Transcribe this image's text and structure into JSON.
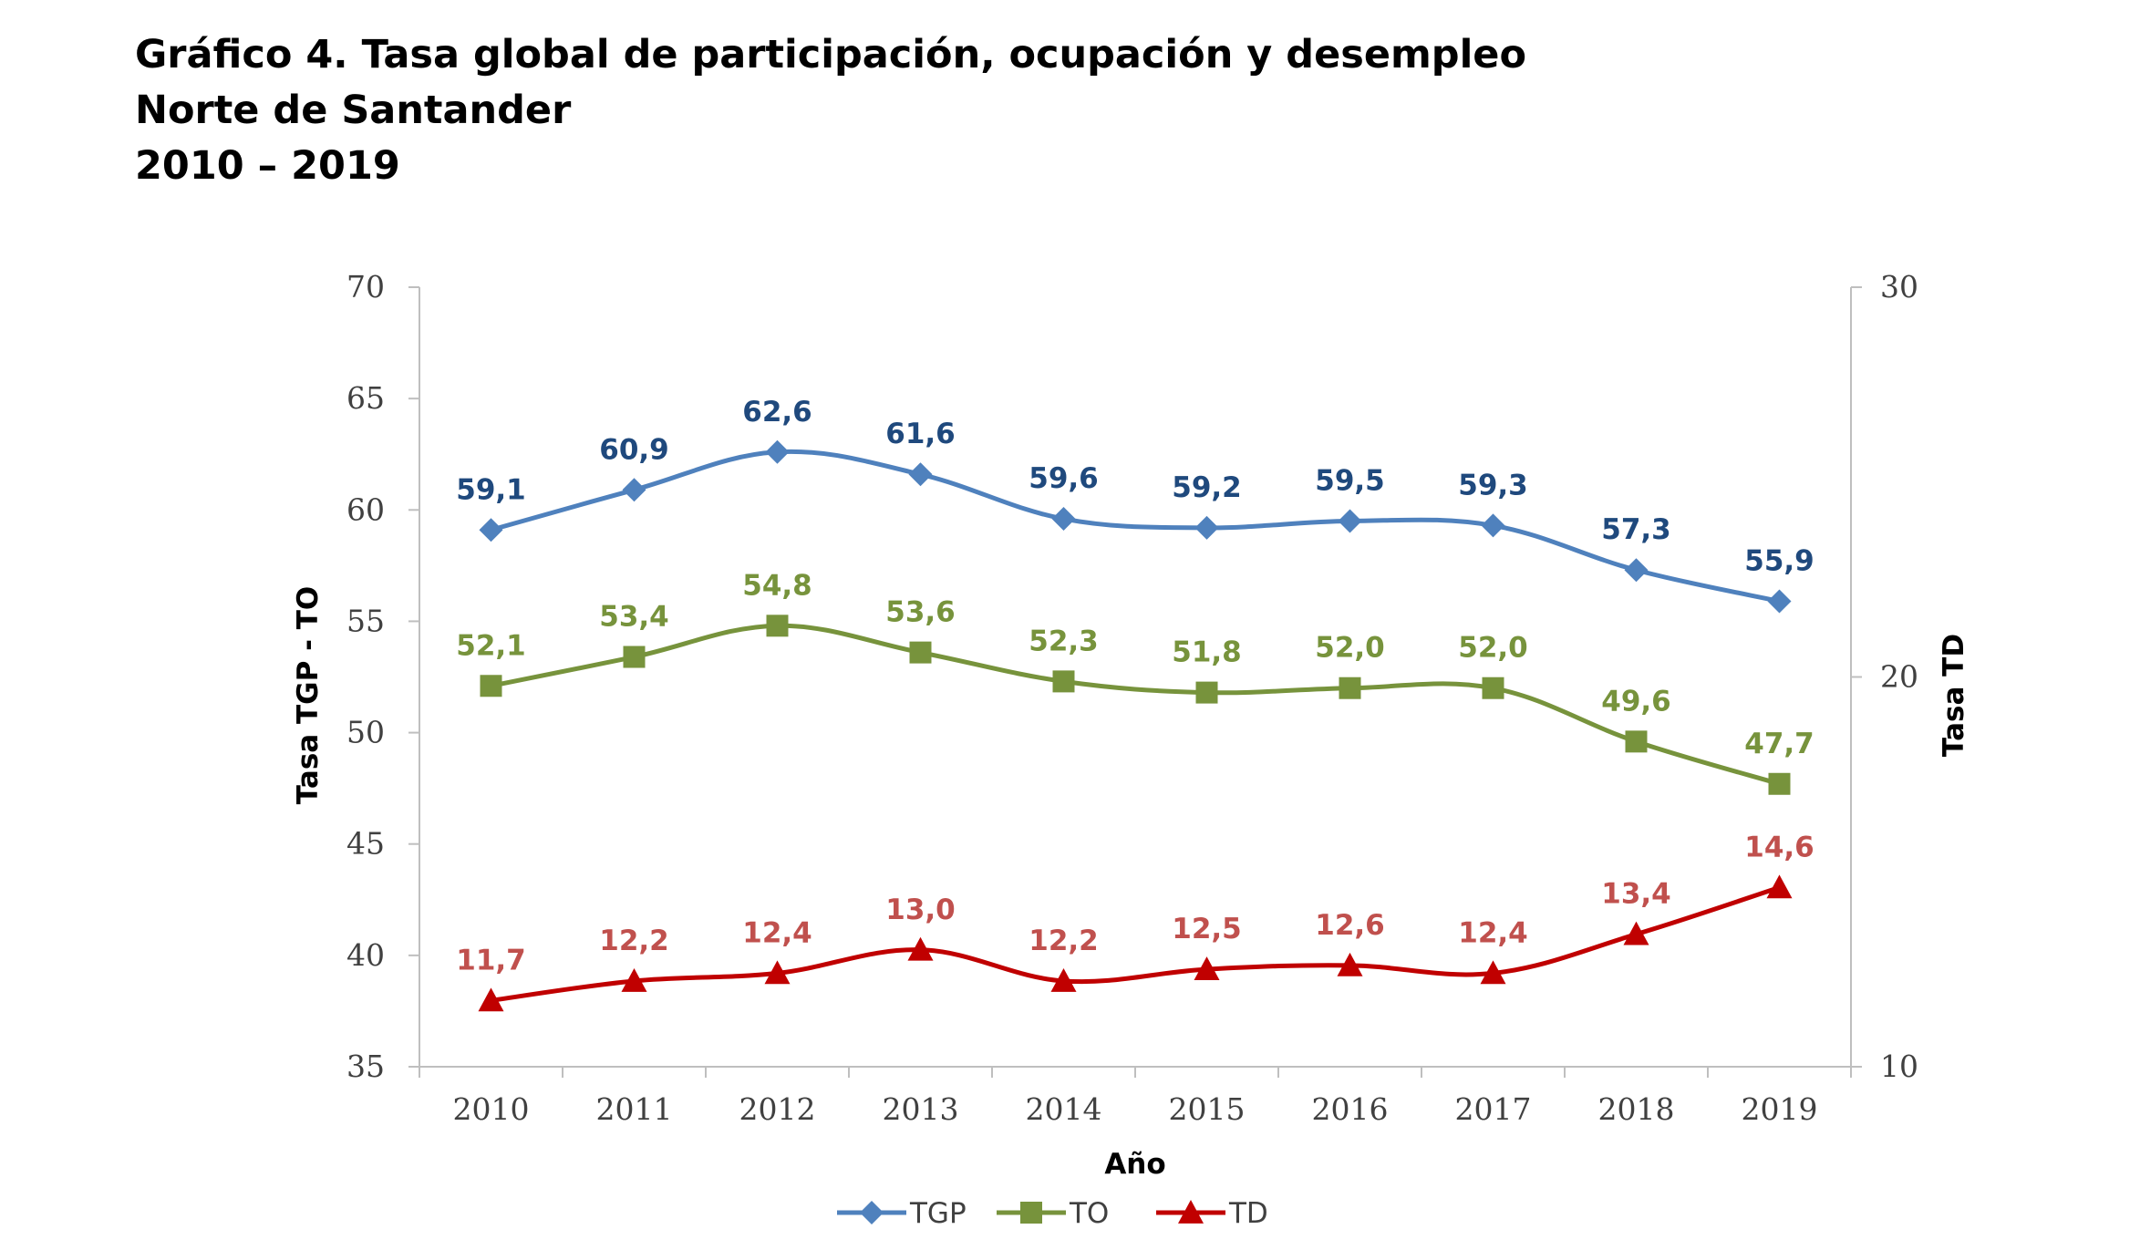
{
  "title": {
    "line1": "Gráfico 4. Tasa global de participación, ocupación y desempleo",
    "line2": "Norte de Santander",
    "line3": "2010 – 2019"
  },
  "chart_data": {
    "type": "line",
    "categories": [
      "2010",
      "2011",
      "2012",
      "2013",
      "2014",
      "2015",
      "2016",
      "2017",
      "2018",
      "2019"
    ],
    "xlabel": "Año",
    "ylabel": "Tasa TGP - TO",
    "y2label": "Tasa TD",
    "ylim": [
      35,
      70
    ],
    "yticks": [
      35,
      40,
      45,
      50,
      55,
      60,
      65,
      70
    ],
    "y2lim": [
      10,
      30
    ],
    "y2ticks": [
      10,
      20,
      30
    ],
    "grid": false,
    "legend_position": "bottom",
    "series": [
      {
        "name": "TGP",
        "axis": "left",
        "color": "#4F81BD",
        "label_color": "#1F497D",
        "marker": "diamond",
        "values": [
          59.1,
          60.9,
          62.6,
          61.6,
          59.6,
          59.2,
          59.5,
          59.3,
          57.3,
          55.9
        ],
        "labels": [
          "59,1",
          "60,9",
          "62,6",
          "61,6",
          "59,6",
          "59,2",
          "59,5",
          "59,3",
          "57,3",
          "55,9"
        ]
      },
      {
        "name": "TO",
        "axis": "left",
        "color": "#77933C",
        "label_color": "#77933C",
        "marker": "square",
        "values": [
          52.1,
          53.4,
          54.8,
          53.6,
          52.3,
          51.8,
          52.0,
          52.0,
          49.6,
          47.7
        ],
        "labels": [
          "52,1",
          "53,4",
          "54,8",
          "53,6",
          "52,3",
          "51,8",
          "52,0",
          "52,0",
          "49,6",
          "47,7"
        ]
      },
      {
        "name": "TD",
        "axis": "right",
        "color": "#C00000",
        "label_color": "#C0504D",
        "marker": "triangle",
        "values": [
          11.7,
          12.2,
          12.4,
          13.0,
          12.2,
          12.5,
          12.6,
          12.4,
          13.4,
          14.6
        ],
        "labels": [
          "11,7",
          "12,2",
          "12,4",
          "13,0",
          "12,2",
          "12,5",
          "12,6",
          "12,4",
          "13,4",
          "14,6"
        ]
      }
    ]
  }
}
